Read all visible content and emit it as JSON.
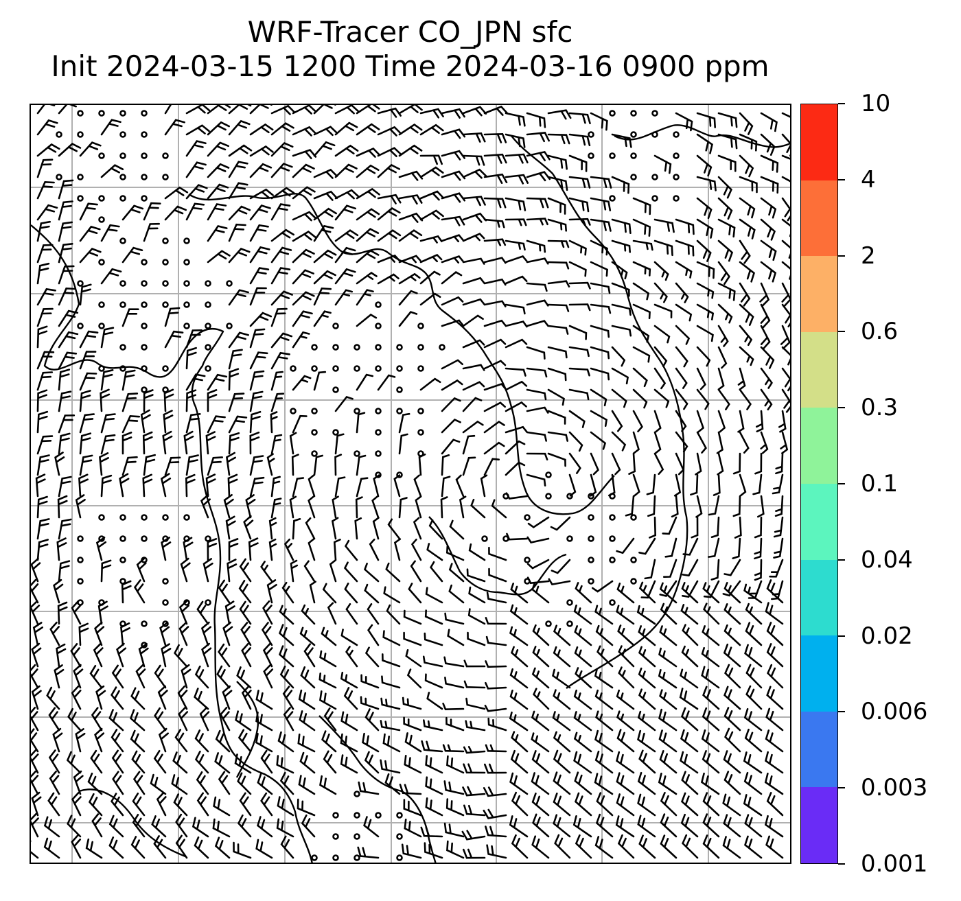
{
  "title": {
    "line1": "WRF-Tracer CO_JPN sfc",
    "line2": "Init 2024-03-15 1200 Time 2024-03-16 0900 ppm"
  },
  "map": {
    "gridlines": "on",
    "grid_color": "#b0b0b0",
    "features": [
      "coastlines",
      "wind-barbs"
    ],
    "barb_color": "#000000"
  },
  "colorbar": {
    "levels": [
      "0.001",
      "0.003",
      "0.006",
      "0.02",
      "0.04",
      "0.1",
      "0.3",
      "0.6",
      "2",
      "4",
      "10"
    ],
    "colors": [
      "#6a2cf6",
      "#3a78f0",
      "#00b0ee",
      "#2ddccf",
      "#5cf5be",
      "#8ff39a",
      "#d3df88",
      "#fdb066",
      "#fd6f38",
      "#fc2a14"
    ]
  }
}
